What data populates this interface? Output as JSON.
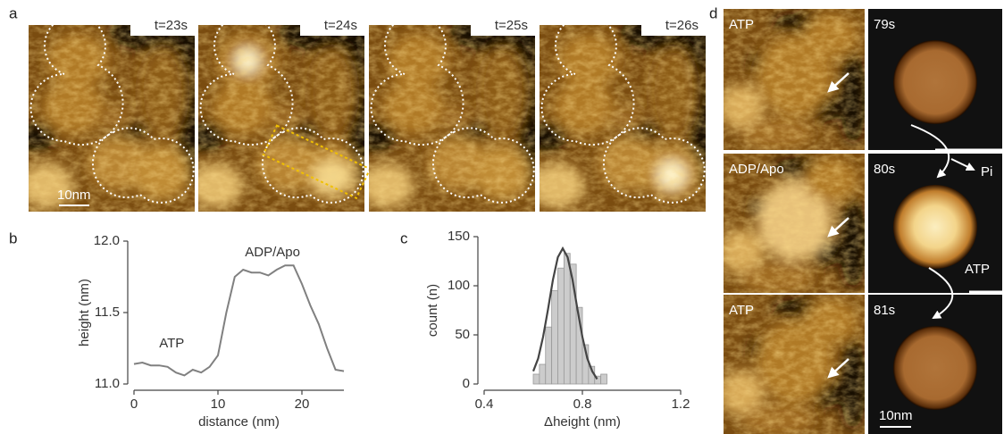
{
  "figure": {
    "panel_labels": [
      "a",
      "b",
      "c",
      "d"
    ],
    "panel_a": {
      "times": [
        "t=23s",
        "t=24s",
        "t=25s",
        "t=26s"
      ],
      "scale_bar": "10nm"
    },
    "panel_d": {
      "rows": [
        {
          "state": "ATP",
          "time": "79s"
        },
        {
          "state": "ADP/Apo",
          "time": "80s"
        },
        {
          "state": "ATP",
          "time": "81s"
        }
      ],
      "release_label": "Pi",
      "binding_label": "ATP",
      "scale_bar": "10nm"
    }
  },
  "chart_data": [
    {
      "type": "line",
      "x_label": "distance (nm)",
      "y_label": "height (nm)",
      "x": [
        0,
        1,
        2,
        3,
        4,
        5,
        6,
        7,
        8,
        9,
        10,
        11,
        12,
        13,
        14,
        15,
        16,
        17,
        18,
        19,
        20,
        21,
        22,
        23,
        24,
        25
      ],
      "values": [
        11.14,
        11.15,
        11.13,
        11.13,
        11.12,
        11.08,
        11.06,
        11.1,
        11.08,
        11.12,
        11.2,
        11.5,
        11.75,
        11.8,
        11.78,
        11.78,
        11.76,
        11.8,
        11.83,
        11.83,
        11.7,
        11.55,
        11.42,
        11.25,
        11.1,
        11.09
      ],
      "color": "#808080",
      "xlim": [
        0,
        25
      ],
      "xticks": [
        0,
        10,
        20
      ],
      "ylim": [
        11.0,
        12.0
      ],
      "yticks": [
        {
          "value": 11.0,
          "label": "11.0"
        },
        {
          "value": 11.5,
          "label": "11.5"
        },
        {
          "value": 12.0,
          "label": "12.0"
        }
      ],
      "annotations": [
        "ATP",
        "ADP/Apo"
      ]
    },
    {
      "type": "histogram",
      "x_label": "Δheight (nm)",
      "y_label": "count (n)",
      "bins": [
        0.6,
        0.625,
        0.65,
        0.675,
        0.7,
        0.725,
        0.75,
        0.775,
        0.8,
        0.825,
        0.85,
        0.875,
        0.9
      ],
      "values": [
        10,
        20,
        58,
        95,
        118,
        133,
        122,
        78,
        40,
        18,
        8,
        10
      ],
      "color": "#cccccc",
      "fit": {
        "x": [
          0.6,
          0.62,
          0.64,
          0.66,
          0.68,
          0.7,
          0.72,
          0.74,
          0.76,
          0.78,
          0.8,
          0.82,
          0.84,
          0.86
        ],
        "values": [
          13,
          26,
          48,
          76,
          106,
          129,
          138,
          129,
          106,
          76,
          48,
          26,
          13,
          5
        ],
        "color": "#444444"
      },
      "xlim": [
        0.4,
        1.2
      ],
      "xticks": [
        {
          "value": 0.4,
          "label": "0.4"
        },
        {
          "value": 0.8,
          "label": "0.8"
        },
        {
          "value": 1.2,
          "label": "1.2"
        }
      ],
      "ylim": [
        0,
        150
      ],
      "yticks": [
        0,
        50,
        100,
        150
      ]
    }
  ]
}
